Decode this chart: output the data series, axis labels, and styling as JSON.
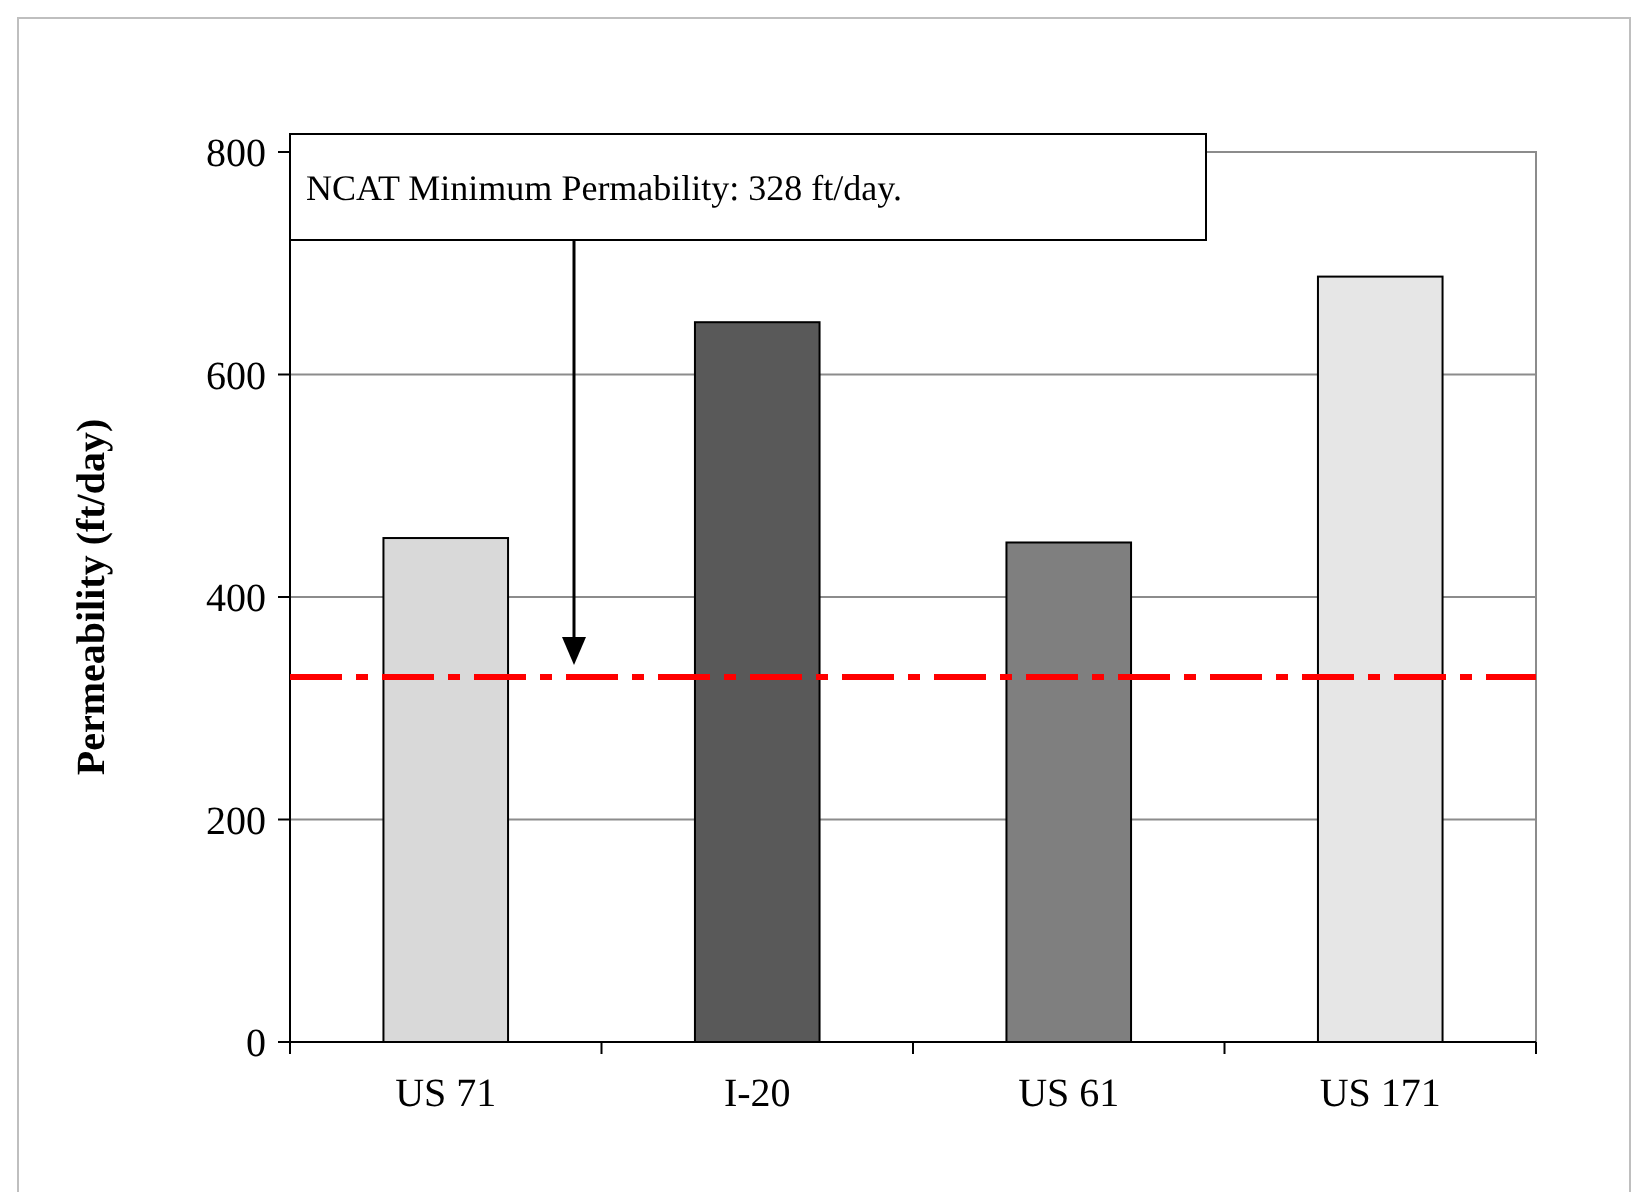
{
  "chart_data": {
    "type": "bar",
    "ylabel": "Permeability (ft/day)",
    "categories": [
      "US 71",
      "I-20",
      "US 61",
      "US 171"
    ],
    "values": [
      453,
      647,
      449,
      688
    ],
    "colors": [
      "#d9d9d9",
      "#595959",
      "#7f7f7f",
      "#e6e6e6"
    ],
    "ylim": [
      0,
      800
    ],
    "yticks": [
      0,
      200,
      400,
      600,
      800
    ],
    "grid": "y",
    "annotations": [
      "NCAT Minimum Permability: 328 ft/day."
    ],
    "ref_lines": [
      {
        "axis": "y",
        "value": 328,
        "color": "#ff0000",
        "line_style": "dashdot"
      }
    ]
  }
}
